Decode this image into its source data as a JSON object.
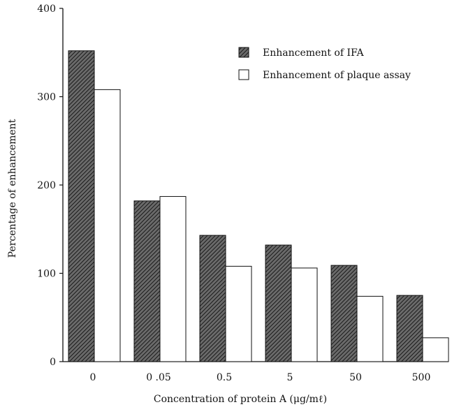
{
  "chart_data": {
    "type": "bar",
    "title": "",
    "xlabel": "Concentration of protein A (μg/mℓ)",
    "ylabel": "Percentage of enhancement",
    "categories": [
      "0",
      "0 .05",
      "0.5",
      "5",
      "50",
      "500"
    ],
    "series": [
      {
        "name": "Enhancement of IFA",
        "values": [
          352,
          182,
          143,
          132,
          109,
          75
        ],
        "color": "#3a3a3a",
        "pattern": "diagonal-hatch"
      },
      {
        "name": "Enhancement of plaque assay",
        "values": [
          308,
          187,
          108,
          106,
          74,
          27
        ],
        "color": "#ffffff",
        "pattern": "none"
      }
    ],
    "ylim": [
      0,
      400
    ],
    "yticks": [
      0,
      100,
      200,
      300,
      400
    ],
    "grid": false,
    "legend_position": "top-right"
  }
}
